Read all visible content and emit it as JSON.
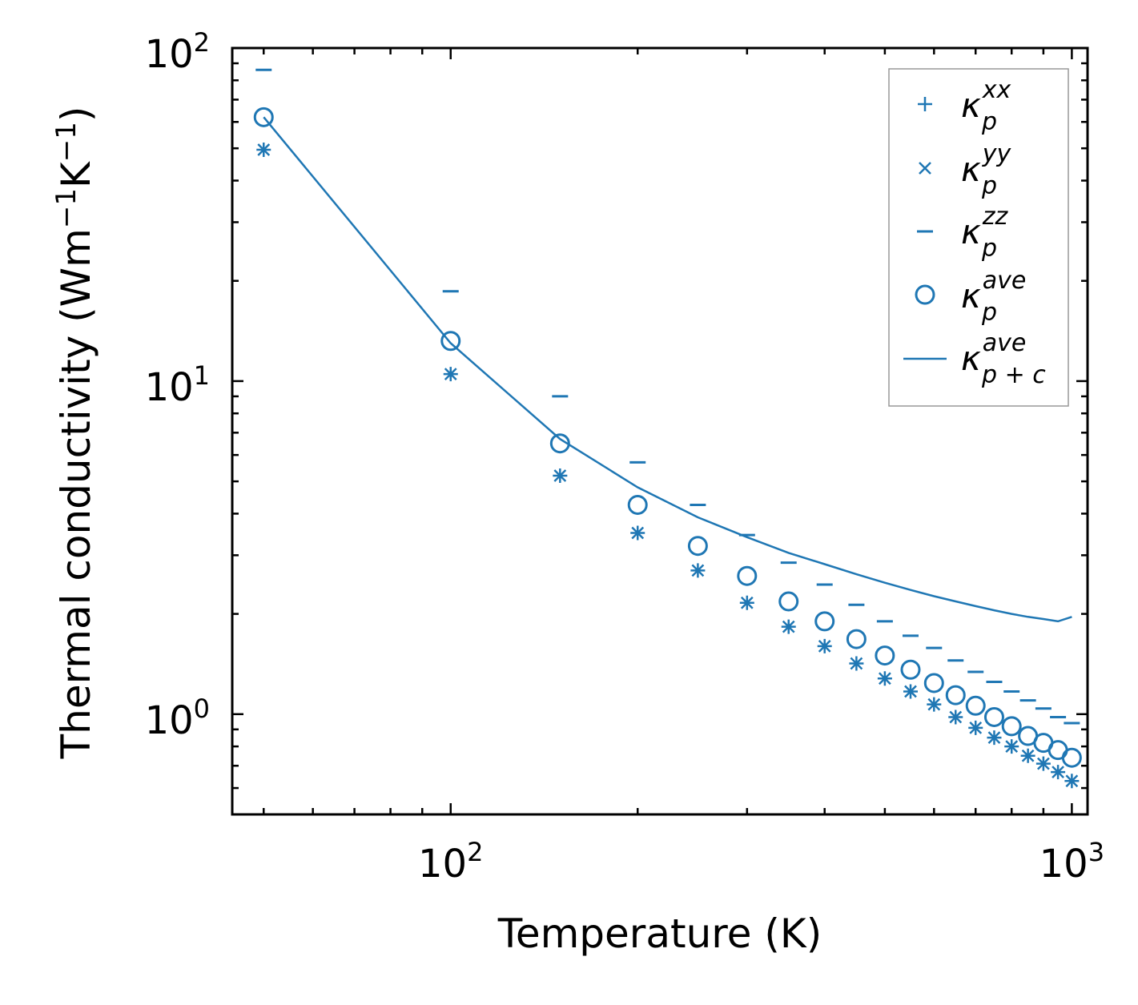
{
  "chart_data": {
    "type": "scatter",
    "xscale": "log",
    "yscale": "log",
    "xlim": [
      44.5,
      1060
    ],
    "ylim": [
      0.5,
      100
    ],
    "xlabel": "Temperature (K)",
    "ylabel": {
      "main": "Thermal conductivity (Wm",
      "e1": "−1",
      "mid": "K",
      "e2": "−1",
      "end": ")"
    },
    "x_ticks": [
      {
        "value": 100,
        "base": "10",
        "exp": "2"
      },
      {
        "value": 1000,
        "base": "10",
        "exp": "3"
      }
    ],
    "y_ticks": [
      {
        "value": 1,
        "base": "10",
        "exp": "0"
      },
      {
        "value": 10,
        "base": "10",
        "exp": "1"
      },
      {
        "value": 100,
        "base": "10",
        "exp": "2"
      }
    ],
    "color": "#1f77b4",
    "legend_position": "top-right",
    "x": [
      50,
      100,
      150,
      200,
      250,
      300,
      350,
      400,
      450,
      500,
      550,
      600,
      650,
      700,
      750,
      800,
      850,
      900,
      950,
      1000
    ],
    "series": [
      {
        "name": "xx",
        "base": "κ",
        "sub": "p",
        "sup": "xx",
        "marker": "plus",
        "values": [
          49.5,
          10.5,
          5.2,
          3.5,
          2.7,
          2.16,
          1.83,
          1.6,
          1.42,
          1.28,
          1.17,
          1.07,
          0.98,
          0.91,
          0.85,
          0.8,
          0.75,
          0.71,
          0.67,
          0.63
        ]
      },
      {
        "name": "yy",
        "base": "κ",
        "sub": "p",
        "sup": "yy",
        "marker": "x",
        "values": [
          49.5,
          10.5,
          5.2,
          3.5,
          2.7,
          2.16,
          1.83,
          1.6,
          1.42,
          1.28,
          1.17,
          1.07,
          0.98,
          0.91,
          0.85,
          0.8,
          0.75,
          0.71,
          0.67,
          0.63
        ]
      },
      {
        "name": "zz",
        "base": "κ",
        "sub": "p",
        "sup": "zz",
        "marker": "hline",
        "values": [
          86,
          18.6,
          9.0,
          5.7,
          4.25,
          3.45,
          2.85,
          2.45,
          2.13,
          1.9,
          1.72,
          1.58,
          1.45,
          1.34,
          1.25,
          1.17,
          1.1,
          1.04,
          0.98,
          0.94
        ]
      },
      {
        "name": "ave",
        "base": "κ",
        "sub": "p",
        "sup": "ave",
        "marker": "circle",
        "values": [
          62,
          13.2,
          6.5,
          4.25,
          3.2,
          2.6,
          2.18,
          1.9,
          1.68,
          1.5,
          1.36,
          1.24,
          1.14,
          1.06,
          0.98,
          0.92,
          0.86,
          0.82,
          0.78,
          0.74
        ]
      },
      {
        "name": "ave_pc",
        "base": "κ",
        "sub": "p + c",
        "sup": "ave",
        "marker": "line",
        "values": [
          62,
          13.0,
          6.7,
          4.8,
          3.9,
          3.4,
          3.05,
          2.82,
          2.63,
          2.48,
          2.36,
          2.26,
          2.18,
          2.11,
          2.05,
          2.0,
          1.96,
          1.93,
          1.9,
          1.96
        ]
      }
    ]
  }
}
